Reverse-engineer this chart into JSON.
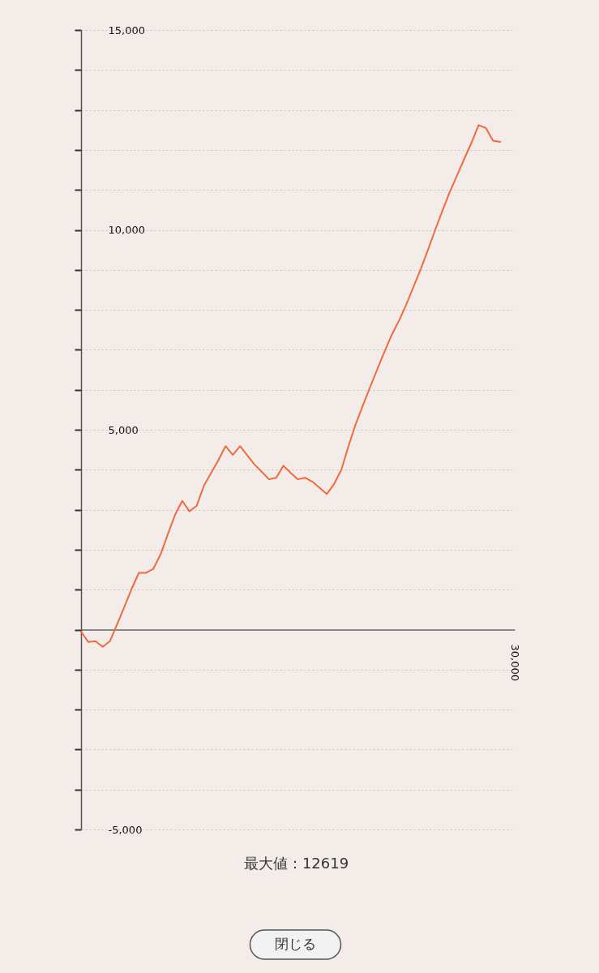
{
  "chart_data": {
    "type": "line",
    "categories": [
      null,
      null,
      null,
      null,
      null,
      null,
      null,
      null,
      null,
      null,
      null,
      null,
      null,
      null,
      null,
      null,
      null,
      null,
      null,
      null,
      null,
      null,
      null,
      null,
      null,
      null,
      null,
      null,
      null,
      null,
      null,
      null,
      null,
      null,
      null,
      null,
      null,
      null,
      null,
      null,
      null,
      null,
      null,
      null,
      null,
      null,
      null,
      null,
      null,
      null,
      null,
      null,
      null,
      null,
      null,
      null,
      null,
      null,
      null,
      null,
      null
    ],
    "ylim": [
      -5000,
      15000
    ],
    "yticks": [
      {
        "value": 15000,
        "label": "15,000"
      },
      {
        "value": 14000,
        "label": null
      },
      {
        "value": 13000,
        "label": null
      },
      {
        "value": 12000,
        "label": null
      },
      {
        "value": 11000,
        "label": null
      },
      {
        "value": 10000,
        "label": "10,000"
      },
      {
        "value": 9000,
        "label": null
      },
      {
        "value": 8000,
        "label": null
      },
      {
        "value": 7000,
        "label": null
      },
      {
        "value": 6000,
        "label": null
      },
      {
        "value": 5000,
        "label": "5,000"
      },
      {
        "value": 4000,
        "label": null
      },
      {
        "value": 3000,
        "label": null
      },
      {
        "value": 2000,
        "label": null
      },
      {
        "value": 1000,
        "label": null
      },
      {
        "value": 0,
        "label": null
      },
      {
        "value": -1000,
        "label": null
      },
      {
        "value": -2000,
        "label": null
      },
      {
        "value": -3000,
        "label": null
      },
      {
        "value": -4000,
        "label": null
      },
      {
        "value": -5000,
        "label": "-5,000"
      }
    ],
    "grid": "y",
    "line_style": "solid",
    "tick_labels": "y",
    "series": [
      {
        "color": "#f06a3e",
        "values": [
          -50,
          -310,
          -290,
          -430,
          -290,
          140,
          570,
          1020,
          1420,
          1420,
          1520,
          1880,
          2380,
          2870,
          3220,
          2960,
          3100,
          3600,
          3920,
          4240,
          4590,
          4370,
          4590,
          4360,
          4130,
          3950,
          3760,
          3800,
          4100,
          3920,
          3760,
          3800,
          3700,
          3550,
          3390,
          3640,
          3990,
          4590,
          5140,
          5610,
          6070,
          6520,
          6960,
          7380,
          7730,
          8130,
          8580,
          9020,
          9500,
          10000,
          10480,
          10940,
          11350,
          11770,
          12170,
          12619,
          12550,
          12230,
          12200,
          null,
          null
        ]
      }
    ],
    "annotations": [
      "30,000",
      "最大値：12619",
      "閉じる"
    ]
  }
}
